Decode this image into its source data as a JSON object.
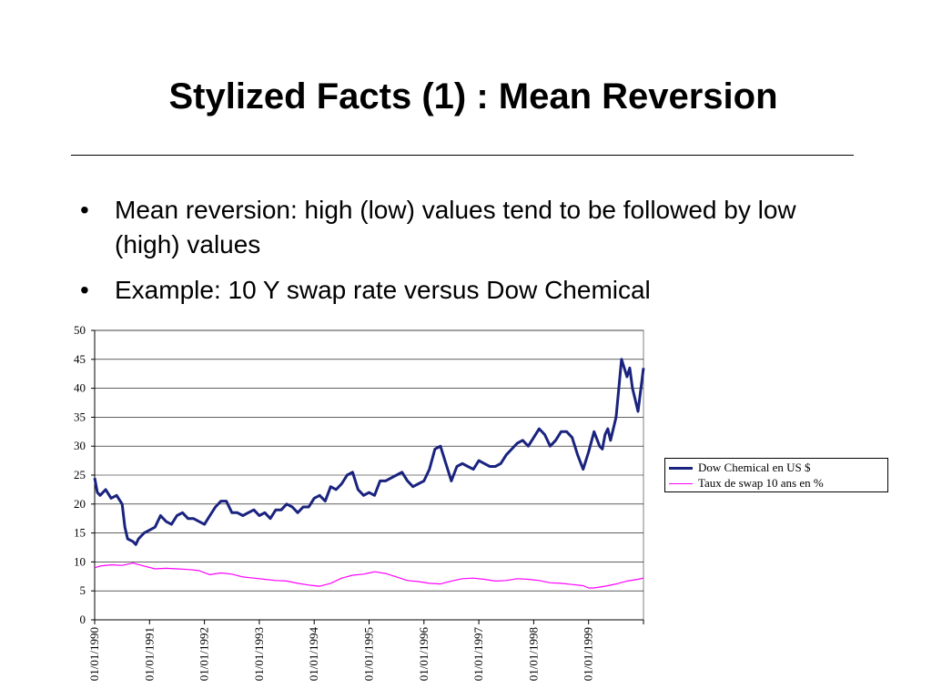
{
  "slide": {
    "title": "Stylized Facts (1) : Mean Reversion",
    "bullets": [
      "Mean reversion: high (low) values tend to be followed by low (high) values",
      "Example: 10 Y swap rate versus Dow Chemical"
    ],
    "bullet_symbol": "•"
  },
  "chart_data": {
    "type": "line",
    "x_tick_labels": [
      "01/01/1990",
      "01/01/1991",
      "01/01/1992",
      "01/01/1993",
      "01/01/1994",
      "01/01/1995",
      "01/01/1996",
      "01/01/1997",
      "01/01/1998",
      "01/01/1999"
    ],
    "x_range": [
      1990.0,
      2000.0
    ],
    "ylim": [
      0,
      50
    ],
    "y_ticks": [
      0,
      5,
      10,
      15,
      20,
      25,
      30,
      35,
      40,
      45,
      50
    ],
    "grid": "horizontal",
    "legend_position": "right",
    "series": [
      {
        "name": "Dow Chemical en US $",
        "color": "#1a237e",
        "x": [
          1990.0,
          1990.05,
          1990.1,
          1990.2,
          1990.3,
          1990.4,
          1990.5,
          1990.55,
          1990.6,
          1990.7,
          1990.75,
          1990.8,
          1990.9,
          1991.0,
          1991.1,
          1991.2,
          1991.3,
          1991.4,
          1991.5,
          1991.6,
          1991.7,
          1991.8,
          1991.9,
          1992.0,
          1992.1,
          1992.2,
          1992.3,
          1992.4,
          1992.5,
          1992.6,
          1992.7,
          1992.8,
          1992.9,
          1993.0,
          1993.1,
          1993.2,
          1993.3,
          1993.4,
          1993.5,
          1993.6,
          1993.7,
          1993.8,
          1993.9,
          1994.0,
          1994.1,
          1994.2,
          1994.3,
          1994.4,
          1994.5,
          1994.6,
          1994.7,
          1994.8,
          1994.9,
          1995.0,
          1995.1,
          1995.2,
          1995.3,
          1995.4,
          1995.5,
          1995.6,
          1995.7,
          1995.8,
          1995.9,
          1996.0,
          1996.1,
          1996.2,
          1996.3,
          1996.4,
          1996.5,
          1996.6,
          1996.7,
          1996.8,
          1996.9,
          1997.0,
          1997.1,
          1997.2,
          1997.3,
          1997.4,
          1997.5,
          1997.6,
          1997.7,
          1997.8,
          1997.9,
          1998.0,
          1998.1,
          1998.2,
          1998.3,
          1998.4,
          1998.5,
          1998.6,
          1998.7,
          1998.8,
          1998.9,
          1999.0,
          1999.1,
          1999.2,
          1999.25,
          1999.3,
          1999.35,
          1999.4,
          1999.5,
          1999.6,
          1999.7,
          1999.75,
          1999.8,
          1999.85,
          1999.9,
          2000.0
        ],
        "y": [
          24.5,
          22,
          21.5,
          22.5,
          21,
          21.5,
          20,
          16,
          14,
          13.5,
          13,
          14,
          15,
          15.5,
          16,
          18,
          17,
          16.5,
          18,
          18.5,
          17.5,
          17.5,
          17,
          16.5,
          18,
          19.5,
          20.5,
          20.5,
          18.5,
          18.5,
          18,
          18.5,
          19,
          18,
          18.5,
          17.5,
          19,
          19,
          20,
          19.5,
          18.5,
          19.5,
          19.5,
          21,
          21.5,
          20.5,
          23,
          22.5,
          23.5,
          25,
          25.5,
          22.5,
          21.5,
          22,
          21.5,
          24,
          24,
          24.5,
          25,
          25.5,
          24,
          23,
          23.5,
          24,
          26,
          29.5,
          30,
          27,
          24,
          26.5,
          27,
          26.5,
          26,
          27.5,
          27,
          26.5,
          26.5,
          27,
          28.5,
          29.5,
          30.5,
          31,
          30,
          31.5,
          33,
          32,
          30,
          31,
          32.5,
          32.5,
          31.5,
          28.5,
          26,
          29,
          32.5,
          30,
          29.5,
          32,
          33,
          31,
          35,
          45,
          42,
          43.5,
          40,
          38,
          36,
          43.5
        ]
      },
      {
        "name": "Taux de swap 10 ans en %",
        "color": "#ff00ff",
        "x": [
          1990.0,
          1990.1,
          1990.3,
          1990.5,
          1990.7,
          1990.9,
          1991.1,
          1991.3,
          1991.5,
          1991.7,
          1991.9,
          1992.1,
          1992.3,
          1992.5,
          1992.7,
          1992.9,
          1993.1,
          1993.3,
          1993.5,
          1993.7,
          1993.9,
          1994.0,
          1994.1,
          1994.3,
          1994.5,
          1994.7,
          1994.9,
          1995.0,
          1995.1,
          1995.3,
          1995.5,
          1995.7,
          1995.9,
          1996.1,
          1996.3,
          1996.5,
          1996.7,
          1996.9,
          1997.1,
          1997.3,
          1997.5,
          1997.7,
          1997.9,
          1998.1,
          1998.3,
          1998.5,
          1998.7,
          1998.9,
          1999.0,
          1999.1,
          1999.3,
          1999.5,
          1999.7,
          1999.9,
          2000.0
        ],
        "y": [
          9,
          9.3,
          9.5,
          9.4,
          9.8,
          9.3,
          8.8,
          8.9,
          8.8,
          8.7,
          8.5,
          7.8,
          8.1,
          7.9,
          7.4,
          7.2,
          7.0,
          6.8,
          6.7,
          6.3,
          6.0,
          5.9,
          5.8,
          6.3,
          7.2,
          7.7,
          7.9,
          8.1,
          8.3,
          8.0,
          7.4,
          6.8,
          6.6,
          6.3,
          6.2,
          6.7,
          7.1,
          7.2,
          7.0,
          6.7,
          6.8,
          7.1,
          7.0,
          6.8,
          6.4,
          6.3,
          6.1,
          5.9,
          5.5,
          5.5,
          5.8,
          6.2,
          6.7,
          7.0,
          7.2
        ]
      }
    ]
  }
}
